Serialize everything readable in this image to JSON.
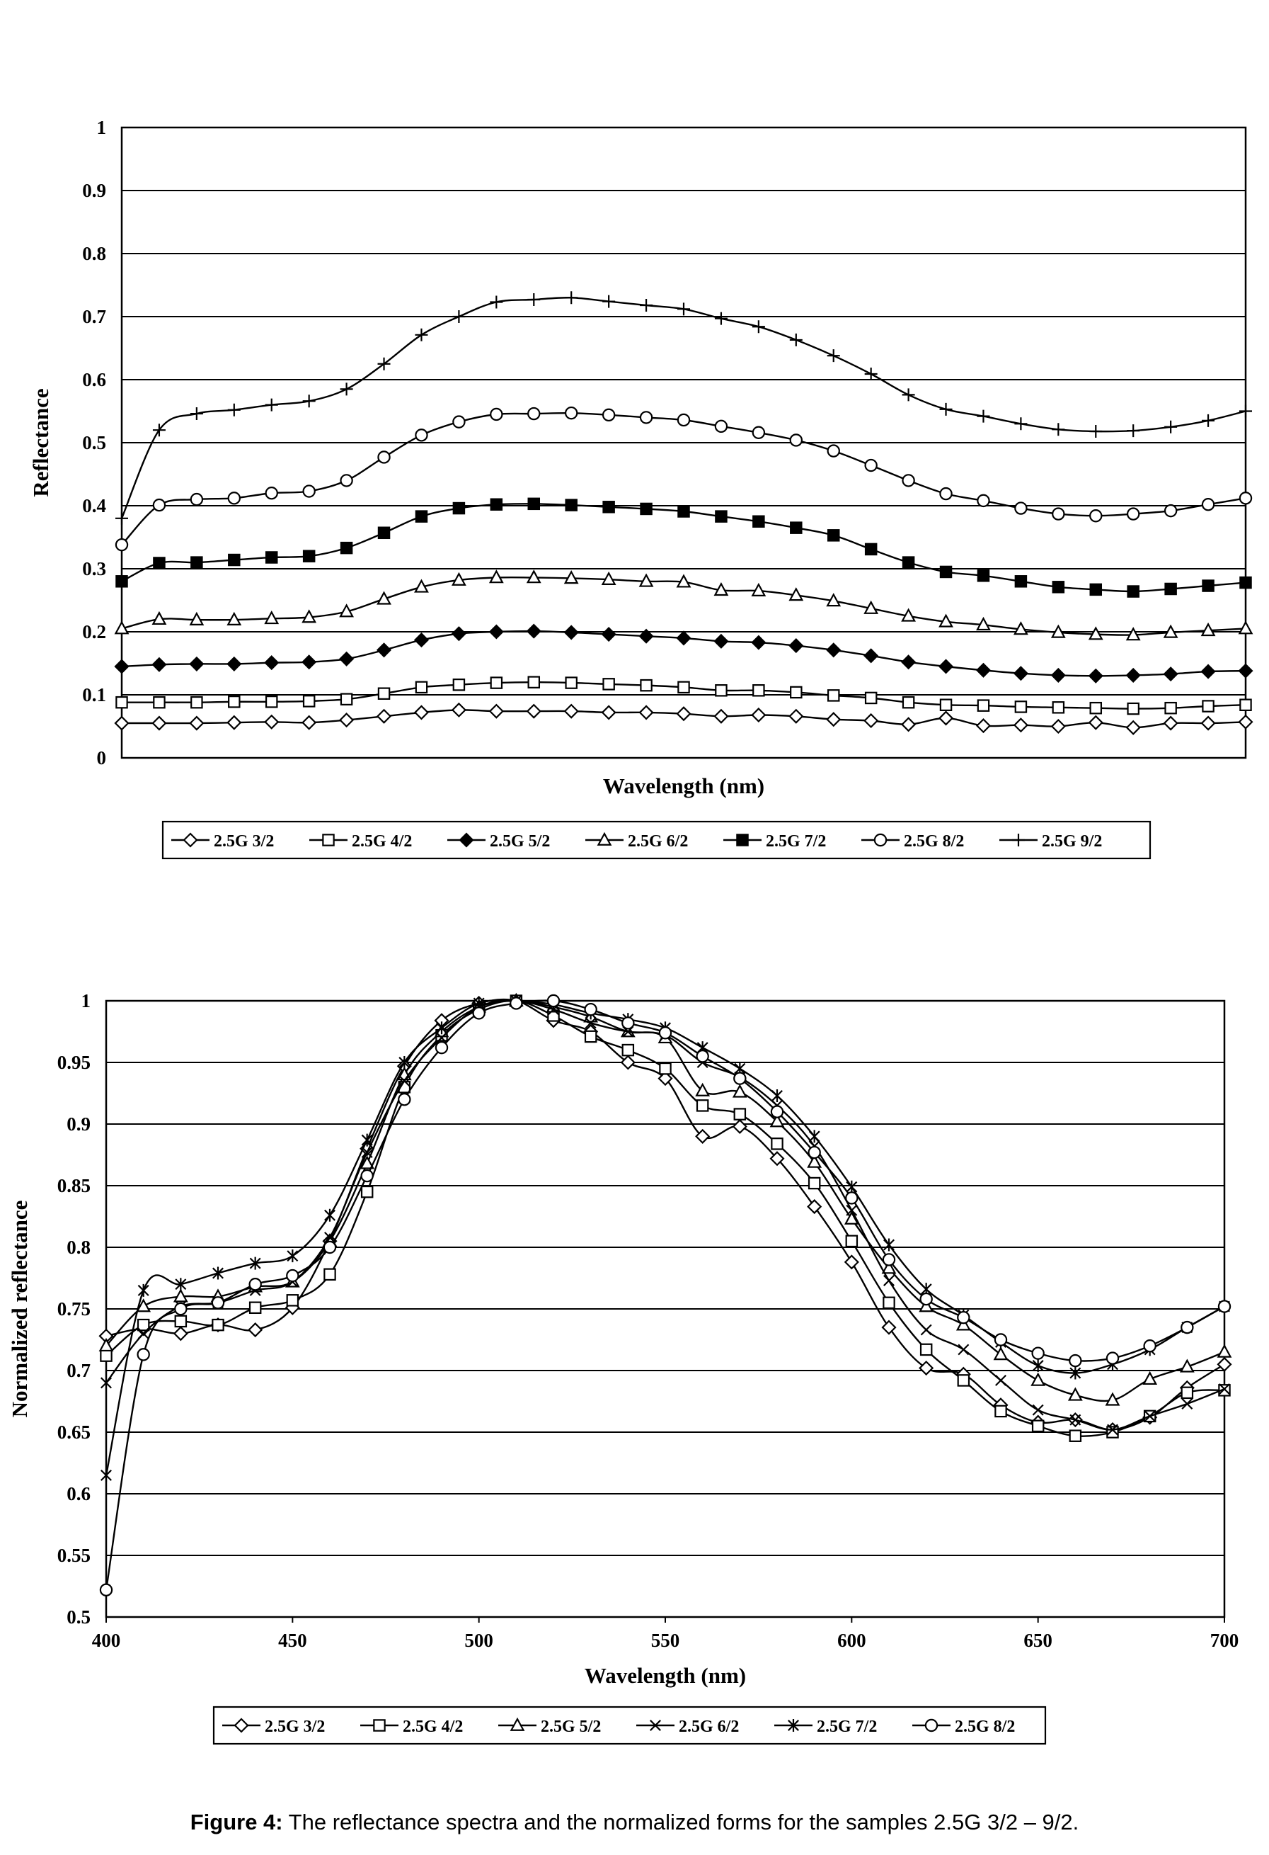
{
  "caption": {
    "label": "Figure 4:",
    "text": " The reflectance spectra and the normalized forms for the samples 2.5G 3/2 – 9/2."
  },
  "chart_data": [
    {
      "type": "line",
      "title": "",
      "xlabel": "Wavelength (nm)",
      "ylabel": "Reflectance",
      "ylim": [
        0,
        1
      ],
      "yticks": [
        "0",
        "0.1",
        "0.2",
        "0.3",
        "0.4",
        "0.5",
        "0.6",
        "0.7",
        "0.8",
        "0.9",
        "1"
      ],
      "x_tick_labels_shown": false,
      "x": [
        400,
        410,
        420,
        430,
        440,
        450,
        460,
        470,
        480,
        490,
        500,
        510,
        520,
        530,
        540,
        550,
        560,
        570,
        580,
        590,
        600,
        610,
        620,
        630,
        640,
        650,
        660,
        670,
        680,
        690,
        700
      ],
      "grid": "horizontal",
      "legend": "bottom",
      "series": [
        {
          "name": "2.5G 3/2",
          "marker": "diamond-open",
          "values": [
            0.055,
            0.055,
            0.055,
            0.056,
            0.057,
            0.056,
            0.06,
            0.066,
            0.072,
            0.076,
            0.074,
            0.074,
            0.074,
            0.072,
            0.072,
            0.07,
            0.066,
            0.068,
            0.066,
            0.061,
            0.059,
            0.053,
            0.063,
            0.051,
            0.052,
            0.05,
            0.056,
            0.048,
            0.055,
            0.055,
            0.057
          ]
        },
        {
          "name": "2.5G 4/2",
          "marker": "square-open",
          "values": [
            0.088,
            0.088,
            0.088,
            0.089,
            0.089,
            0.09,
            0.093,
            0.102,
            0.112,
            0.116,
            0.119,
            0.12,
            0.119,
            0.117,
            0.115,
            0.112,
            0.107,
            0.107,
            0.104,
            0.099,
            0.095,
            0.088,
            0.084,
            0.083,
            0.081,
            0.08,
            0.079,
            0.078,
            0.079,
            0.082,
            0.084
          ]
        },
        {
          "name": "2.5G 5/2",
          "marker": "diamond-filled",
          "values": [
            0.145,
            0.148,
            0.149,
            0.149,
            0.151,
            0.152,
            0.157,
            0.171,
            0.187,
            0.197,
            0.2,
            0.201,
            0.199,
            0.196,
            0.193,
            0.19,
            0.185,
            0.183,
            0.178,
            0.171,
            0.162,
            0.152,
            0.145,
            0.139,
            0.134,
            0.131,
            0.13,
            0.131,
            0.133,
            0.137,
            0.138
          ]
        },
        {
          "name": "2.5G 6/2",
          "marker": "triangle-open",
          "values": [
            0.205,
            0.22,
            0.219,
            0.219,
            0.221,
            0.223,
            0.232,
            0.252,
            0.271,
            0.282,
            0.286,
            0.286,
            0.285,
            0.283,
            0.28,
            0.279,
            0.266,
            0.265,
            0.258,
            0.249,
            0.237,
            0.225,
            0.216,
            0.211,
            0.204,
            0.199,
            0.196,
            0.195,
            0.199,
            0.202,
            0.205
          ]
        },
        {
          "name": "2.5G 7/2",
          "marker": "square-filled",
          "values": [
            0.28,
            0.309,
            0.31,
            0.314,
            0.318,
            0.32,
            0.333,
            0.357,
            0.383,
            0.396,
            0.402,
            0.403,
            0.401,
            0.398,
            0.395,
            0.391,
            0.383,
            0.375,
            0.365,
            0.353,
            0.331,
            0.31,
            0.295,
            0.289,
            0.28,
            0.271,
            0.267,
            0.264,
            0.268,
            0.273,
            0.278
          ]
        },
        {
          "name": "2.5G 8/2",
          "marker": "circle-open",
          "values": [
            0.338,
            0.401,
            0.41,
            0.412,
            0.42,
            0.423,
            0.44,
            0.477,
            0.512,
            0.533,
            0.545,
            0.546,
            0.547,
            0.544,
            0.54,
            0.536,
            0.526,
            0.516,
            0.504,
            0.487,
            0.464,
            0.44,
            0.419,
            0.408,
            0.396,
            0.387,
            0.384,
            0.387,
            0.392,
            0.402,
            0.412
          ]
        },
        {
          "name": "2.5G 9/2",
          "marker": "plus",
          "values": [
            0.38,
            0.52,
            0.546,
            0.552,
            0.56,
            0.566,
            0.585,
            0.625,
            0.671,
            0.7,
            0.723,
            0.727,
            0.73,
            0.724,
            0.718,
            0.712,
            0.697,
            0.684,
            0.663,
            0.638,
            0.609,
            0.576,
            0.553,
            0.542,
            0.53,
            0.521,
            0.518,
            0.519,
            0.525,
            0.535,
            0.55
          ]
        }
      ]
    },
    {
      "type": "line",
      "title": "",
      "xlabel": "Wavelength (nm)",
      "ylabel": "Normalized reflectance",
      "ylim": [
        0.5,
        1
      ],
      "yticks": [
        "0.5",
        "0.55",
        "0.6",
        "0.65",
        "0.7",
        "0.75",
        "0.8",
        "0.85",
        "0.9",
        "0.95",
        "1"
      ],
      "xlim": [
        400,
        700
      ],
      "xticks": [
        "400",
        "450",
        "500",
        "550",
        "600",
        "650",
        "700"
      ],
      "x": [
        400,
        410,
        420,
        430,
        440,
        450,
        460,
        470,
        480,
        490,
        500,
        510,
        520,
        530,
        540,
        550,
        560,
        570,
        580,
        590,
        600,
        610,
        620,
        630,
        640,
        650,
        660,
        670,
        680,
        690,
        700
      ],
      "grid": "horizontal",
      "legend": "bottom",
      "series": [
        {
          "name": "2.5G 3/2",
          "marker": "diamond-open",
          "values": [
            0.728,
            0.734,
            0.73,
            0.737,
            0.733,
            0.751,
            0.805,
            0.88,
            0.947,
            0.984,
            0.998,
            1.0,
            0.984,
            0.975,
            0.95,
            0.937,
            0.89,
            0.898,
            0.872,
            0.833,
            0.788,
            0.735,
            0.702,
            0.697,
            0.672,
            0.658,
            0.66,
            0.652,
            0.662,
            0.686,
            0.705
          ]
        },
        {
          "name": "2.5G 4/2",
          "marker": "square-open",
          "values": [
            0.712,
            0.737,
            0.74,
            0.737,
            0.751,
            0.757,
            0.778,
            0.845,
            0.93,
            0.972,
            0.993,
            1.0,
            0.988,
            0.971,
            0.96,
            0.945,
            0.915,
            0.908,
            0.884,
            0.852,
            0.805,
            0.755,
            0.717,
            0.692,
            0.667,
            0.655,
            0.647,
            0.65,
            0.663,
            0.682,
            0.684
          ]
        },
        {
          "name": "2.5G 5/2",
          "marker": "triangle-open",
          "values": [
            0.72,
            0.752,
            0.76,
            0.76,
            0.768,
            0.772,
            0.805,
            0.868,
            0.94,
            0.975,
            0.995,
            1.0,
            0.995,
            0.987,
            0.975,
            0.97,
            0.927,
            0.926,
            0.902,
            0.869,
            0.823,
            0.783,
            0.752,
            0.737,
            0.713,
            0.692,
            0.68,
            0.676,
            0.693,
            0.703,
            0.715
          ]
        },
        {
          "name": "2.5G 6/2",
          "marker": "x",
          "values": [
            0.69,
            0.73,
            0.752,
            0.755,
            0.765,
            0.772,
            0.808,
            0.877,
            0.935,
            0.97,
            0.995,
            1.0,
            0.993,
            0.982,
            0.975,
            0.972,
            0.95,
            0.938,
            0.915,
            0.882,
            0.83,
            0.773,
            0.733,
            0.717,
            0.692,
            0.668,
            0.66,
            0.652,
            0.663,
            0.673,
            0.685
          ]
        },
        {
          "name": "2.5G 7/2",
          "marker": "star",
          "values": [
            0.615,
            0.765,
            0.77,
            0.779,
            0.787,
            0.793,
            0.826,
            0.887,
            0.95,
            0.978,
            0.998,
            1.0,
            0.997,
            0.99,
            0.985,
            0.978,
            0.962,
            0.945,
            0.923,
            0.89,
            0.849,
            0.802,
            0.766,
            0.745,
            0.723,
            0.704,
            0.698,
            0.705,
            0.717,
            0.735,
            0.752
          ]
        },
        {
          "name": "2.5G 8/2",
          "marker": "circle-open",
          "values": [
            0.522,
            0.713,
            0.75,
            0.755,
            0.77,
            0.777,
            0.8,
            0.858,
            0.92,
            0.962,
            0.99,
            0.998,
            1.0,
            0.993,
            0.982,
            0.974,
            0.955,
            0.937,
            0.91,
            0.877,
            0.84,
            0.79,
            0.758,
            0.743,
            0.725,
            0.714,
            0.708,
            0.71,
            0.72,
            0.735,
            0.752
          ]
        }
      ]
    }
  ]
}
